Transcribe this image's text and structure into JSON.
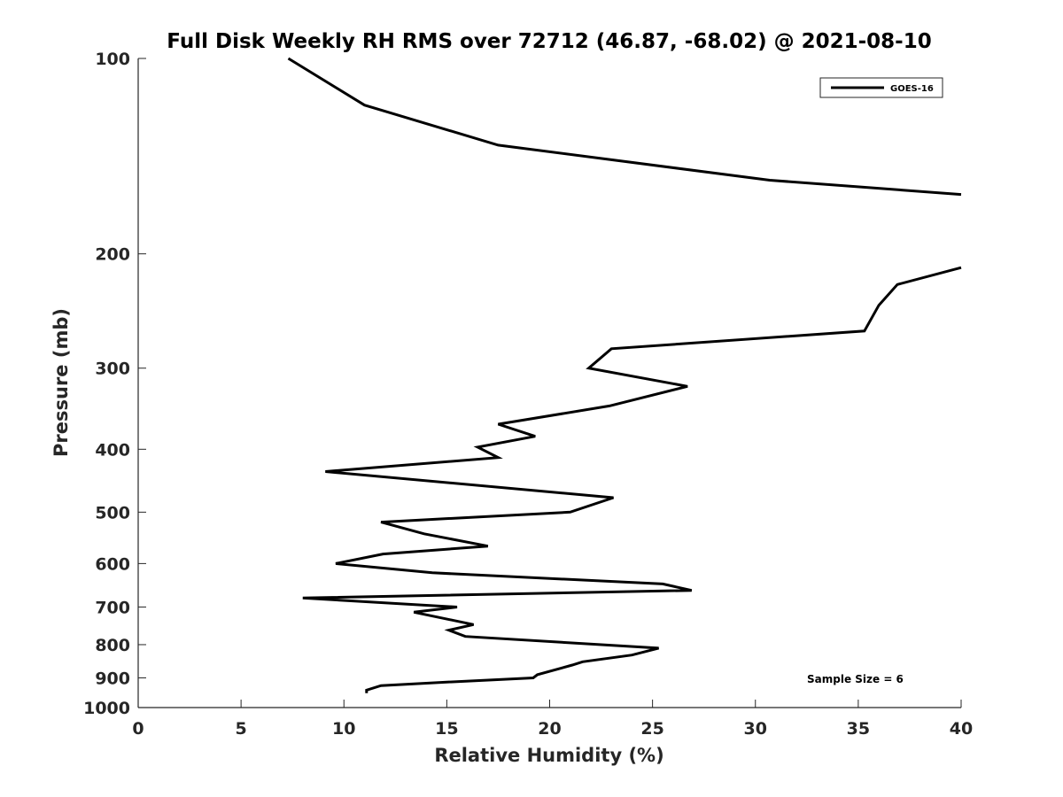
{
  "chart_data": {
    "type": "line",
    "title": "Full Disk Weekly RH RMS over 72712 (46.87, -68.02) @ 2021-08-10",
    "xlabel": "Relative Humidity (%)",
    "ylabel": "Pressure (mb)",
    "xlim": [
      0,
      40
    ],
    "ylim": [
      100,
      1000
    ],
    "yscale": "log",
    "y_reversed": true,
    "grid": false,
    "legend_position": "top-right",
    "x_ticks": [
      "0",
      "5",
      "10",
      "15",
      "20",
      "25",
      "30",
      "35",
      "40"
    ],
    "y_ticks": [
      "100",
      "200",
      "300",
      "400",
      "500",
      "600",
      "700",
      "800",
      "900",
      "1000"
    ],
    "annotation": "Sample Size = 6",
    "series": [
      {
        "name": "GOES-16",
        "color": "#000000",
        "segments": [
          [
            [
              7.3,
              100
            ],
            [
              11.0,
              118
            ],
            [
              17.5,
              136
            ],
            [
              30.7,
              154
            ],
            [
              40.0,
              162
            ]
          ],
          [
            [
              40.0,
              210
            ],
            [
              36.9,
              223
            ],
            [
              36.0,
              240
            ],
            [
              35.3,
              263
            ],
            [
              23.0,
              280
            ],
            [
              21.9,
              300
            ],
            [
              26.7,
              320
            ],
            [
              22.9,
              343
            ],
            [
              17.5,
              366
            ],
            [
              19.3,
              382
            ],
            [
              16.5,
              397
            ],
            [
              17.5,
              412
            ],
            [
              9.1,
              433
            ],
            [
              23.1,
              475
            ],
            [
              21.0,
              500
            ],
            [
              11.8,
              518
            ],
            [
              13.9,
              540
            ],
            [
              17.0,
              564
            ],
            [
              11.9,
              580
            ],
            [
              9.6,
              600
            ],
            [
              14.3,
              620
            ],
            [
              25.5,
              645
            ],
            [
              26.9,
              660
            ],
            [
              8.0,
              678
            ],
            [
              15.5,
              700
            ],
            [
              13.4,
              713
            ],
            [
              16.3,
              745
            ],
            [
              15.1,
              760
            ],
            [
              15.9,
              777
            ],
            [
              25.3,
              810
            ],
            [
              24.0,
              830
            ],
            [
              21.6,
              850
            ],
            [
              21.1,
              860
            ],
            [
              19.4,
              890
            ],
            [
              19.2,
              900
            ],
            [
              14.6,
              915
            ],
            [
              11.8,
              925
            ],
            [
              11.1,
              940
            ],
            [
              11.1,
              950
            ]
          ]
        ]
      }
    ]
  }
}
